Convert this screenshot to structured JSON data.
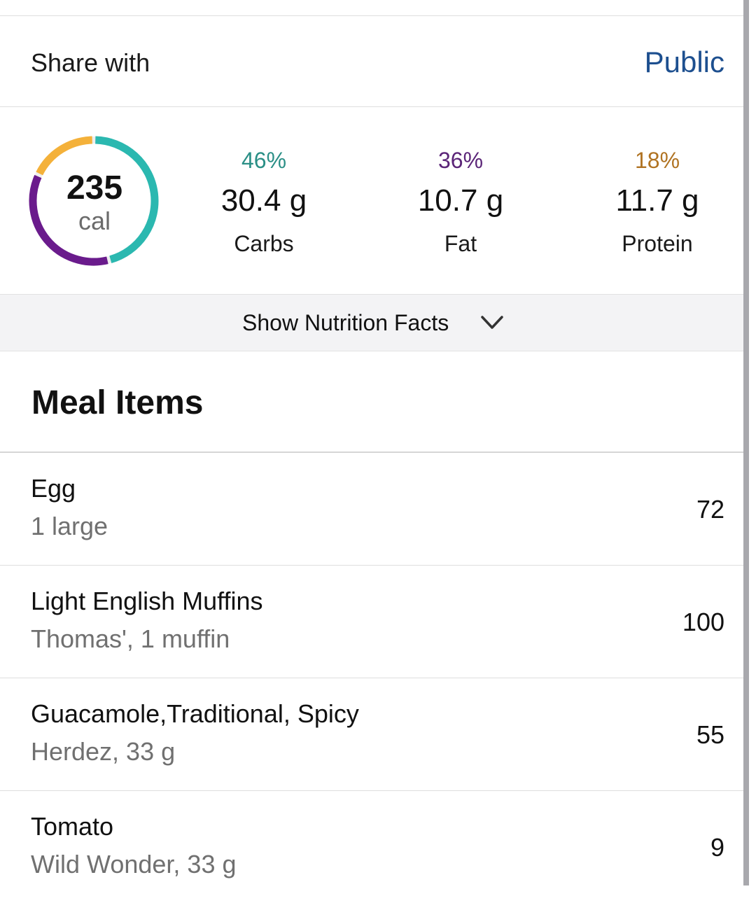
{
  "share": {
    "label": "Share with",
    "value": "Public"
  },
  "summary": {
    "calories": "235",
    "calories_unit": "cal",
    "ring": [
      {
        "macro": "carbs",
        "fraction": 0.46,
        "color": "#2bb8b0"
      },
      {
        "macro": "fat",
        "fraction": 0.36,
        "color": "#6a1b8c"
      },
      {
        "macro": "protein",
        "fraction": 0.18,
        "color": "#f4b13a"
      }
    ],
    "macros": [
      {
        "percent": "46%",
        "grams": "30.4 g",
        "name": "Carbs",
        "color": "#2a8f86"
      },
      {
        "percent": "36%",
        "grams": "10.7 g",
        "name": "Fat",
        "color": "#5b2578"
      },
      {
        "percent": "18%",
        "grams": "11.7 g",
        "name": "Protein",
        "color": "#b07322"
      }
    ]
  },
  "nutrition_toggle": {
    "label": "Show Nutrition Facts",
    "icon": "chevron-down-icon"
  },
  "meal_section": {
    "title": "Meal Items"
  },
  "meal_items": [
    {
      "name": "Egg",
      "desc": "1 large",
      "calories": "72"
    },
    {
      "name": "Light English Muffins",
      "desc": "Thomas', 1 muffin",
      "calories": "100"
    },
    {
      "name": "Guacamole,Traditional, Spicy",
      "desc": "Herdez, 33 g",
      "calories": "55"
    },
    {
      "name": "Tomato",
      "desc": "Wild Wonder, 33 g",
      "calories": "9"
    }
  ]
}
